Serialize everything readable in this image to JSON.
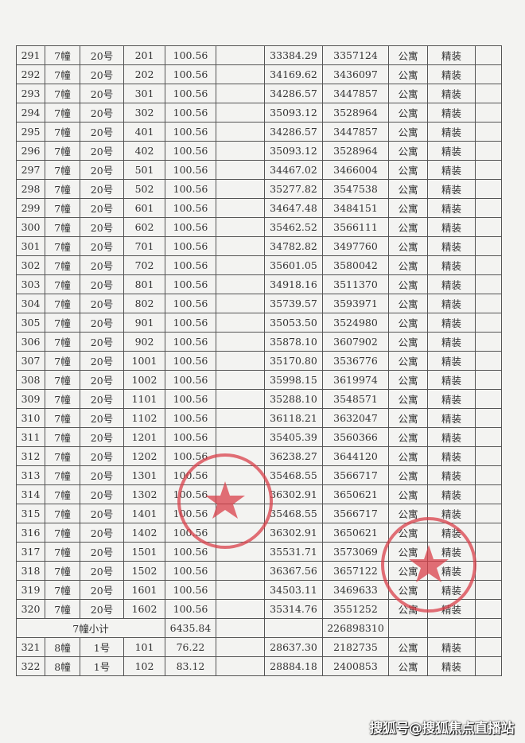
{
  "table": {
    "rows": [
      [
        "291",
        "7幢",
        "20号",
        "201",
        "100.56",
        "",
        "33384.29",
        "3357124",
        "公寓",
        "精装",
        ""
      ],
      [
        "292",
        "7幢",
        "20号",
        "202",
        "100.56",
        "",
        "34169.62",
        "3436097",
        "公寓",
        "精装",
        ""
      ],
      [
        "293",
        "7幢",
        "20号",
        "301",
        "100.56",
        "",
        "34286.57",
        "3447857",
        "公寓",
        "精装",
        ""
      ],
      [
        "294",
        "7幢",
        "20号",
        "302",
        "100.56",
        "",
        "35093.12",
        "3528964",
        "公寓",
        "精装",
        ""
      ],
      [
        "295",
        "7幢",
        "20号",
        "401",
        "100.56",
        "",
        "34286.57",
        "3447857",
        "公寓",
        "精装",
        ""
      ],
      [
        "296",
        "7幢",
        "20号",
        "402",
        "100.56",
        "",
        "35093.12",
        "3528964",
        "公寓",
        "精装",
        ""
      ],
      [
        "297",
        "7幢",
        "20号",
        "501",
        "100.56",
        "",
        "34467.02",
        "3466004",
        "公寓",
        "精装",
        ""
      ],
      [
        "298",
        "7幢",
        "20号",
        "502",
        "100.56",
        "",
        "35277.82",
        "3547538",
        "公寓",
        "精装",
        ""
      ],
      [
        "299",
        "7幢",
        "20号",
        "601",
        "100.56",
        "",
        "34647.48",
        "3484151",
        "公寓",
        "精装",
        ""
      ],
      [
        "300",
        "7幢",
        "20号",
        "602",
        "100.56",
        "",
        "35462.52",
        "3566111",
        "公寓",
        "精装",
        ""
      ],
      [
        "301",
        "7幢",
        "20号",
        "701",
        "100.56",
        "",
        "34782.82",
        "3497760",
        "公寓",
        "精装",
        ""
      ],
      [
        "302",
        "7幢",
        "20号",
        "702",
        "100.56",
        "",
        "35601.05",
        "3580042",
        "公寓",
        "精装",
        ""
      ],
      [
        "303",
        "7幢",
        "20号",
        "801",
        "100.56",
        "",
        "34918.16",
        "3511370",
        "公寓",
        "精装",
        ""
      ],
      [
        "304",
        "7幢",
        "20号",
        "802",
        "100.56",
        "",
        "35739.57",
        "3593971",
        "公寓",
        "精装",
        ""
      ],
      [
        "305",
        "7幢",
        "20号",
        "901",
        "100.56",
        "",
        "35053.50",
        "3524980",
        "公寓",
        "精装",
        ""
      ],
      [
        "306",
        "7幢",
        "20号",
        "902",
        "100.56",
        "",
        "35878.10",
        "3607902",
        "公寓",
        "精装",
        ""
      ],
      [
        "307",
        "7幢",
        "20号",
        "1001",
        "100.56",
        "",
        "35170.80",
        "3536776",
        "公寓",
        "精装",
        ""
      ],
      [
        "308",
        "7幢",
        "20号",
        "1002",
        "100.56",
        "",
        "35998.15",
        "3619974",
        "公寓",
        "精装",
        ""
      ],
      [
        "309",
        "7幢",
        "20号",
        "1101",
        "100.56",
        "",
        "35288.10",
        "3548571",
        "公寓",
        "精装",
        ""
      ],
      [
        "310",
        "7幢",
        "20号",
        "1102",
        "100.56",
        "",
        "36118.21",
        "3632047",
        "公寓",
        "精装",
        ""
      ],
      [
        "311",
        "7幢",
        "20号",
        "1201",
        "100.56",
        "",
        "35405.39",
        "3560366",
        "公寓",
        "精装",
        ""
      ],
      [
        "312",
        "7幢",
        "20号",
        "1202",
        "100.56",
        "",
        "36238.27",
        "3644120",
        "公寓",
        "精装",
        ""
      ],
      [
        "313",
        "7幢",
        "20号",
        "1301",
        "100.56",
        "",
        "35468.55",
        "3566717",
        "公寓",
        "精装",
        ""
      ],
      [
        "314",
        "7幢",
        "20号",
        "1302",
        "100.56",
        "",
        "36302.91",
        "3650621",
        "公寓",
        "精装",
        ""
      ],
      [
        "315",
        "7幢",
        "20号",
        "1401",
        "100.56",
        "",
        "35468.55",
        "3566717",
        "公寓",
        "精装",
        ""
      ],
      [
        "316",
        "7幢",
        "20号",
        "1402",
        "100.56",
        "",
        "36302.91",
        "3650621",
        "公寓",
        "精装",
        ""
      ],
      [
        "317",
        "7幢",
        "20号",
        "1501",
        "100.56",
        "",
        "35531.71",
        "3573069",
        "公寓",
        "精装",
        ""
      ],
      [
        "318",
        "7幢",
        "20号",
        "1502",
        "100.56",
        "",
        "36367.56",
        "3657122",
        "公寓",
        "精装",
        ""
      ],
      [
        "319",
        "7幢",
        "20号",
        "1601",
        "100.56",
        "",
        "34503.11",
        "3469633",
        "公寓",
        "精装",
        ""
      ],
      [
        "320",
        "7幢",
        "20号",
        "1602",
        "100.56",
        "",
        "35314.76",
        "3551252",
        "公寓",
        "精装",
        ""
      ]
    ],
    "subtotal": {
      "label": "7幢小计",
      "area": "6435.84",
      "total": "226898310"
    },
    "rows_after": [
      [
        "321",
        "8幢",
        "1号",
        "101",
        "76.22",
        "",
        "28637.30",
        "2182735",
        "公寓",
        "精装",
        ""
      ],
      [
        "322",
        "8幢",
        "1号",
        "102",
        "83.12",
        "",
        "28884.18",
        "2400853",
        "公寓",
        "精装",
        ""
      ]
    ]
  },
  "seal_color": "#d9404a",
  "watermark": "搜狐号@搜狐焦点直播站"
}
